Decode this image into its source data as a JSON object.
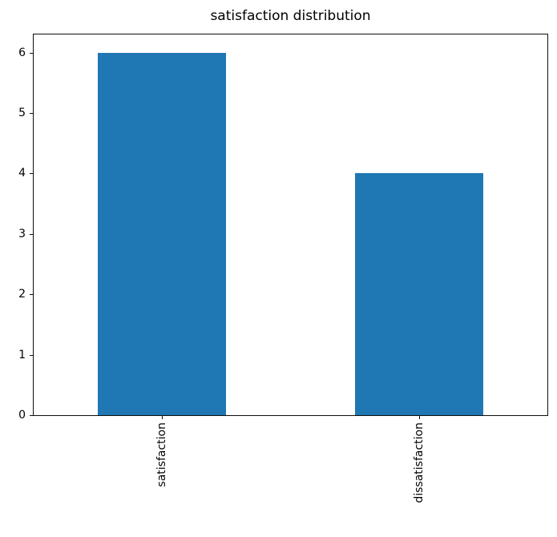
{
  "chart_data": {
    "type": "bar",
    "title": "satisfaction distribution",
    "categories": [
      "satisfaction",
      "dissatisfaction"
    ],
    "values": [
      6,
      4
    ],
    "xlabel": "",
    "ylabel": "",
    "ylim": [
      0,
      6.3
    ],
    "yticks": [
      0,
      1,
      2,
      3,
      4,
      5,
      6
    ],
    "bar_color": "#1f77b4",
    "axis_color": "#0f0f0f",
    "text_color": "#000000",
    "grid": false,
    "legend": "none"
  }
}
